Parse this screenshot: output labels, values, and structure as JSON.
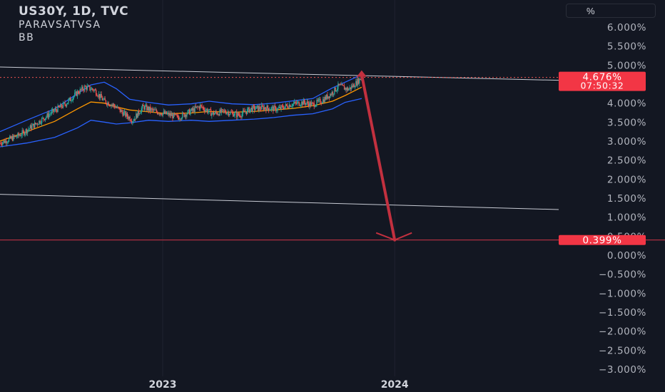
{
  "legend": {
    "title": "US30Y, 1D, TVC",
    "indicator_1": "PARAVSATVSA",
    "indicator_2": "BB"
  },
  "scale_button": "%",
  "price_badge": {
    "value": "4.676%",
    "countdown": "07:50:32",
    "color": "#f23645"
  },
  "target_badge": {
    "value": "0.399%",
    "color": "#f23645"
  },
  "colors": {
    "background": "#131722",
    "bb_band": "#2962ff",
    "bb_basis": "#ff9800",
    "candle_up": "#26a69a",
    "candle_down": "#ef5350",
    "arrow": "#c2303f"
  },
  "chart_data": {
    "type": "candlestick",
    "title": "US30Y, 1D, TVC",
    "y_unit": "%",
    "ylim": [
      -3.0,
      6.0
    ],
    "y_ticks": [
      "6.000%",
      "5.500%",
      "5.000%",
      "4.500%",
      "4.000%",
      "3.500%",
      "3.000%",
      "2.500%",
      "2.000%",
      "1.500%",
      "1.000%",
      "0.500%",
      "0.000%",
      "−0.500%",
      "−1.000%",
      "−1.500%",
      "−2.000%",
      "−2.500%",
      "−3.000%"
    ],
    "x_ticks": [
      "2023",
      "2024"
    ],
    "x_tick_dates": [
      "2023-01-01",
      "2024-01-01"
    ],
    "xlim": [
      "2022-04-20",
      "2024-09-15"
    ],
    "grid": true,
    "last_price": 4.676,
    "target_price": 0.399,
    "price_path": [
      [
        "2022-04-20",
        2.95
      ],
      [
        "2022-05-20",
        3.15
      ],
      [
        "2022-06-15",
        3.45
      ],
      [
        "2022-07-10",
        3.75
      ],
      [
        "2022-08-01",
        3.98
      ],
      [
        "2022-08-20",
        4.28
      ],
      [
        "2022-09-01",
        4.42
      ],
      [
        "2022-09-15",
        4.35
      ],
      [
        "2022-10-01",
        4.05
      ],
      [
        "2022-10-15",
        3.95
      ],
      [
        "2022-11-01",
        3.72
      ],
      [
        "2022-11-15",
        3.55
      ],
      [
        "2022-12-01",
        3.9
      ],
      [
        "2022-12-20",
        3.78
      ],
      [
        "2023-01-10",
        3.7
      ],
      [
        "2023-01-25",
        3.62
      ],
      [
        "2023-02-10",
        3.75
      ],
      [
        "2023-03-01",
        3.92
      ],
      [
        "2023-03-20",
        3.72
      ],
      [
        "2023-04-10",
        3.78
      ],
      [
        "2023-05-01",
        3.68
      ],
      [
        "2023-05-20",
        3.85
      ],
      [
        "2023-06-10",
        3.88
      ],
      [
        "2023-07-01",
        3.84
      ],
      [
        "2023-07-20",
        3.96
      ],
      [
        "2023-08-10",
        4.02
      ],
      [
        "2023-08-25",
        3.96
      ],
      [
        "2023-09-10",
        4.08
      ],
      [
        "2023-09-25",
        4.28
      ],
      [
        "2023-10-05",
        4.45
      ],
      [
        "2023-10-20",
        4.36
      ],
      [
        "2023-11-01",
        4.52
      ],
      [
        "2023-11-10",
        4.676
      ]
    ],
    "bollinger_bands": {
      "upper": [
        [
          "2022-04-20",
          3.25
        ],
        [
          "2022-06-01",
          3.55
        ],
        [
          "2022-07-15",
          3.85
        ],
        [
          "2022-08-20",
          4.25
        ],
        [
          "2022-09-10",
          4.48
        ],
        [
          "2022-10-01",
          4.55
        ],
        [
          "2022-10-20",
          4.38
        ],
        [
          "2022-11-10",
          4.1
        ],
        [
          "2022-12-10",
          4.02
        ],
        [
          "2023-01-10",
          3.95
        ],
        [
          "2023-02-15",
          3.98
        ],
        [
          "2023-03-15",
          4.05
        ],
        [
          "2023-04-20",
          3.98
        ],
        [
          "2023-05-25",
          3.96
        ],
        [
          "2023-06-25",
          4.0
        ],
        [
          "2023-07-25",
          4.06
        ],
        [
          "2023-08-25",
          4.12
        ],
        [
          "2023-09-25",
          4.4
        ],
        [
          "2023-10-15",
          4.55
        ],
        [
          "2023-11-10",
          4.75
        ]
      ],
      "basis": [
        [
          "2022-04-20",
          3.0
        ],
        [
          "2022-06-01",
          3.25
        ],
        [
          "2022-07-15",
          3.52
        ],
        [
          "2022-08-20",
          3.85
        ],
        [
          "2022-09-10",
          4.03
        ],
        [
          "2022-10-01",
          4.0
        ],
        [
          "2022-10-20",
          3.9
        ],
        [
          "2022-11-10",
          3.82
        ],
        [
          "2022-12-10",
          3.77
        ],
        [
          "2023-01-10",
          3.72
        ],
        [
          "2023-02-15",
          3.74
        ],
        [
          "2023-03-15",
          3.78
        ],
        [
          "2023-04-20",
          3.76
        ],
        [
          "2023-05-25",
          3.78
        ],
        [
          "2023-06-25",
          3.82
        ],
        [
          "2023-07-25",
          3.86
        ],
        [
          "2023-08-25",
          3.93
        ],
        [
          "2023-09-25",
          4.05
        ],
        [
          "2023-10-15",
          4.2
        ],
        [
          "2023-11-10",
          4.42
        ]
      ],
      "lower": [
        [
          "2022-04-20",
          2.85
        ],
        [
          "2022-06-01",
          2.95
        ],
        [
          "2022-07-15",
          3.1
        ],
        [
          "2022-08-20",
          3.35
        ],
        [
          "2022-09-10",
          3.55
        ],
        [
          "2022-10-01",
          3.5
        ],
        [
          "2022-10-20",
          3.45
        ],
        [
          "2022-11-10",
          3.48
        ],
        [
          "2022-12-10",
          3.55
        ],
        [
          "2023-01-10",
          3.52
        ],
        [
          "2023-02-15",
          3.55
        ],
        [
          "2023-03-15",
          3.52
        ],
        [
          "2023-04-20",
          3.55
        ],
        [
          "2023-05-25",
          3.58
        ],
        [
          "2023-06-25",
          3.62
        ],
        [
          "2023-07-25",
          3.68
        ],
        [
          "2023-08-25",
          3.72
        ],
        [
          "2023-09-25",
          3.85
        ],
        [
          "2023-10-15",
          4.02
        ],
        [
          "2023-11-10",
          4.12
        ]
      ]
    },
    "trend_lines": [
      {
        "from": [
          "2022-04-20",
          4.95
        ],
        "to": [
          "2024-09-15",
          4.6
        ]
      },
      {
        "from": [
          "2022-04-20",
          1.6
        ],
        "to": [
          "2024-09-15",
          1.2
        ]
      }
    ],
    "horizontal_lines": [
      0.399
    ],
    "projection_arrow": {
      "from": [
        "2023-11-10",
        4.75
      ],
      "to": [
        "2024-01-01",
        0.399
      ]
    }
  }
}
